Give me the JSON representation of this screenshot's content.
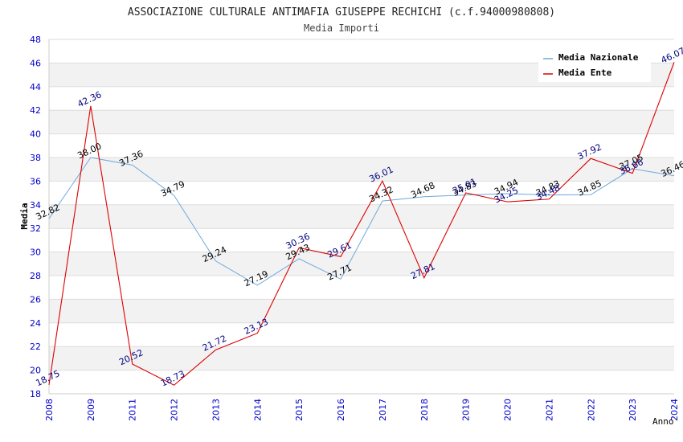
{
  "chart_data": {
    "type": "line",
    "title": "ASSOCIAZIONE CULTURALE ANTIMAFIA GIUSEPPE RECHICHI (c.f.94000980808)",
    "subtitle": "Media Importi",
    "xlabel": "Anno",
    "ylabel": "Media",
    "ylim": [
      18,
      48
    ],
    "ytick_step": 2,
    "grid": "horizontal bands",
    "legend_position": "top-right",
    "x": [
      "2008",
      "2009",
      "2011",
      "2012",
      "2013",
      "2014",
      "2015",
      "2016",
      "2017",
      "2018",
      "2019",
      "2020",
      "2021",
      "2022",
      "2023",
      "2024"
    ],
    "series": [
      {
        "name": "Media Nazionale",
        "color": "#6fa8dc",
        "label_color": "#000000",
        "values": [
          32.82,
          38.0,
          37.36,
          34.79,
          29.24,
          27.19,
          29.43,
          27.71,
          34.32,
          34.68,
          34.83,
          34.94,
          34.83,
          34.85,
          37.05,
          36.46
        ],
        "labels": [
          "32.82",
          "38.00",
          "37.36",
          "34.79",
          "29.24",
          "27.19",
          "29.43",
          "27.71",
          "34.32",
          "34.68",
          "34.83",
          "34.94",
          "34.83",
          "34.85",
          "37.05",
          "36.46"
        ]
      },
      {
        "name": "Media Ente",
        "color": "#dd0000",
        "label_color": "#000080",
        "values": [
          18.75,
          42.36,
          20.52,
          18.73,
          21.72,
          23.13,
          30.36,
          29.61,
          36.01,
          27.81,
          35.01,
          34.25,
          34.48,
          37.92,
          36.66,
          46.07
        ],
        "labels": [
          "18.75",
          "42.36",
          "20.52",
          "18.73",
          "21.72",
          "23.13",
          "30.36",
          "29.61",
          "36.01",
          "27.81",
          "35.01",
          "34.25",
          "34.48",
          "37.92",
          "36.66",
          "46.07"
        ]
      }
    ]
  }
}
